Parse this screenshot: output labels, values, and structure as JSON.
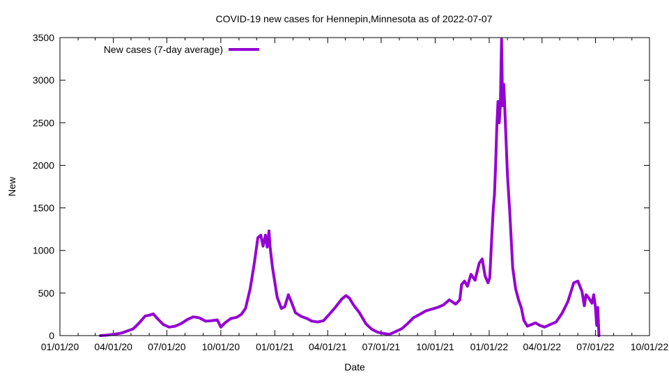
{
  "chart_data": {
    "type": "line",
    "title": "COVID-19 new cases for Hennepin,Minnesota as of 2022-07-07",
    "xlabel": "Date",
    "ylabel": "New",
    "xlim": [
      "2020-01-01",
      "2022-10-01"
    ],
    "ylim": [
      0,
      3500
    ],
    "x_ticks": [
      "01/01/20",
      "04/01/20",
      "07/01/20",
      "10/01/20",
      "01/01/21",
      "04/01/21",
      "07/01/21",
      "10/01/21",
      "01/01/22",
      "04/01/22",
      "07/01/22",
      "10/01/22"
    ],
    "y_ticks": [
      0,
      500,
      1000,
      1500,
      2000,
      2500,
      3000,
      3500
    ],
    "grid": false,
    "legend_position": "top-left",
    "series": [
      {
        "name": "New cases (7-day average)",
        "color": "#9400d3",
        "points": [
          [
            "2020-03-10",
            0
          ],
          [
            "2020-03-20",
            5
          ],
          [
            "2020-04-01",
            15
          ],
          [
            "2020-04-15",
            30
          ],
          [
            "2020-04-25",
            55
          ],
          [
            "2020-05-05",
            80
          ],
          [
            "2020-05-15",
            150
          ],
          [
            "2020-05-25",
            230
          ],
          [
            "2020-06-01",
            240
          ],
          [
            "2020-06-08",
            255
          ],
          [
            "2020-06-15",
            200
          ],
          [
            "2020-06-25",
            130
          ],
          [
            "2020-07-05",
            100
          ],
          [
            "2020-07-15",
            110
          ],
          [
            "2020-07-25",
            140
          ],
          [
            "2020-08-05",
            190
          ],
          [
            "2020-08-15",
            220
          ],
          [
            "2020-08-25",
            210
          ],
          [
            "2020-09-05",
            170
          ],
          [
            "2020-09-15",
            175
          ],
          [
            "2020-09-25",
            185
          ],
          [
            "2020-10-01",
            100
          ],
          [
            "2020-10-08",
            150
          ],
          [
            "2020-10-18",
            200
          ],
          [
            "2020-10-28",
            215
          ],
          [
            "2020-11-05",
            250
          ],
          [
            "2020-11-12",
            320
          ],
          [
            "2020-11-20",
            550
          ],
          [
            "2020-11-27",
            850
          ],
          [
            "2020-12-03",
            1150
          ],
          [
            "2020-12-08",
            1180
          ],
          [
            "2020-12-12",
            1050
          ],
          [
            "2020-12-16",
            1180
          ],
          [
            "2020-12-19",
            1040
          ],
          [
            "2020-12-22",
            1230
          ],
          [
            "2020-12-24",
            1030
          ],
          [
            "2020-12-28",
            800
          ],
          [
            "2021-01-05",
            450
          ],
          [
            "2021-01-12",
            320
          ],
          [
            "2021-01-18",
            340
          ],
          [
            "2021-01-24",
            480
          ],
          [
            "2021-01-30",
            380
          ],
          [
            "2021-02-05",
            270
          ],
          [
            "2021-02-15",
            225
          ],
          [
            "2021-02-25",
            200
          ],
          [
            "2021-03-05",
            170
          ],
          [
            "2021-03-15",
            160
          ],
          [
            "2021-03-25",
            175
          ],
          [
            "2021-04-05",
            260
          ],
          [
            "2021-04-15",
            340
          ],
          [
            "2021-04-25",
            430
          ],
          [
            "2021-05-02",
            470
          ],
          [
            "2021-05-08",
            440
          ],
          [
            "2021-05-15",
            360
          ],
          [
            "2021-05-25",
            270
          ],
          [
            "2021-06-05",
            140
          ],
          [
            "2021-06-15",
            75
          ],
          [
            "2021-06-25",
            40
          ],
          [
            "2021-07-05",
            25
          ],
          [
            "2021-07-15",
            15
          ],
          [
            "2021-07-25",
            45
          ],
          [
            "2021-08-05",
            80
          ],
          [
            "2021-08-15",
            140
          ],
          [
            "2021-08-25",
            210
          ],
          [
            "2021-09-05",
            250
          ],
          [
            "2021-09-15",
            290
          ],
          [
            "2021-09-25",
            310
          ],
          [
            "2021-10-05",
            330
          ],
          [
            "2021-10-15",
            360
          ],
          [
            "2021-10-25",
            420
          ],
          [
            "2021-11-05",
            370
          ],
          [
            "2021-11-12",
            420
          ],
          [
            "2021-11-15",
            600
          ],
          [
            "2021-11-20",
            640
          ],
          [
            "2021-11-25",
            580
          ],
          [
            "2021-12-01",
            720
          ],
          [
            "2021-12-08",
            650
          ],
          [
            "2021-12-15",
            850
          ],
          [
            "2021-12-20",
            900
          ],
          [
            "2021-12-25",
            700
          ],
          [
            "2021-12-30",
            620
          ],
          [
            "2022-01-02",
            680
          ],
          [
            "2022-01-05",
            1100
          ],
          [
            "2022-01-08",
            1500
          ],
          [
            "2022-01-10",
            1650
          ],
          [
            "2022-01-12",
            2000
          ],
          [
            "2022-01-14",
            2450
          ],
          [
            "2022-01-16",
            2750
          ],
          [
            "2022-01-18",
            2500
          ],
          [
            "2022-01-20",
            2700
          ],
          [
            "2022-01-22",
            3480
          ],
          [
            "2022-01-24",
            2700
          ],
          [
            "2022-01-26",
            2950
          ],
          [
            "2022-01-28",
            2600
          ],
          [
            "2022-02-01",
            1900
          ],
          [
            "2022-02-05",
            1450
          ],
          [
            "2022-02-10",
            800
          ],
          [
            "2022-02-15",
            550
          ],
          [
            "2022-02-20",
            420
          ],
          [
            "2022-02-25",
            320
          ],
          [
            "2022-03-01",
            180
          ],
          [
            "2022-03-07",
            110
          ],
          [
            "2022-03-14",
            130
          ],
          [
            "2022-03-21",
            150
          ],
          [
            "2022-03-28",
            120
          ],
          [
            "2022-04-05",
            100
          ],
          [
            "2022-04-15",
            130
          ],
          [
            "2022-04-25",
            160
          ],
          [
            "2022-05-05",
            260
          ],
          [
            "2022-05-15",
            400
          ],
          [
            "2022-05-25",
            620
          ],
          [
            "2022-06-01",
            640
          ],
          [
            "2022-06-08",
            520
          ],
          [
            "2022-06-12",
            350
          ],
          [
            "2022-06-15",
            480
          ],
          [
            "2022-06-20",
            440
          ],
          [
            "2022-06-25",
            380
          ],
          [
            "2022-06-28",
            480
          ],
          [
            "2022-07-01",
            330
          ],
          [
            "2022-07-03",
            120
          ],
          [
            "2022-07-05",
            330
          ],
          [
            "2022-07-07",
            0
          ]
        ]
      }
    ]
  }
}
